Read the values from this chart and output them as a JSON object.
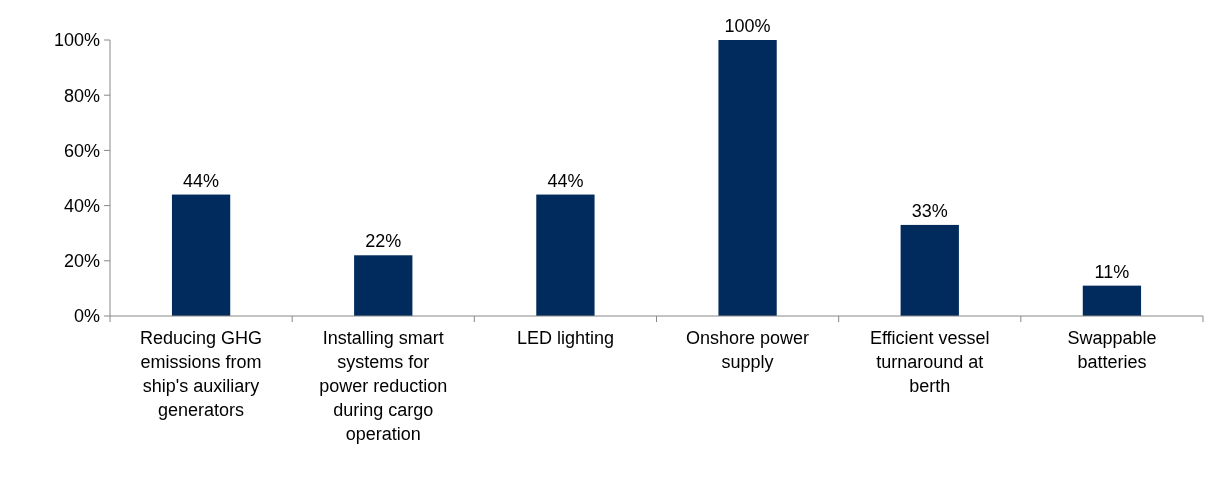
{
  "chart_data": {
    "type": "bar",
    "categories": [
      "Reducing GHG emissions from ship's auxiliary generators",
      "Installing smart systems for power reduction during cargo operation",
      "LED lighting",
      "Onshore power supply",
      "Efficient vessel turnaround at berth",
      "Swappable batteries"
    ],
    "values": [
      44,
      22,
      44,
      100,
      33,
      11
    ],
    "value_labels": [
      "44%",
      "22%",
      "44%",
      "100%",
      "33%",
      "11%"
    ],
    "color": "#002b5c",
    "ylim": [
      0,
      100
    ],
    "yticks": [
      {
        "value": 0,
        "label": "0%"
      },
      {
        "value": 20,
        "label": "20%"
      },
      {
        "value": 40,
        "label": "40%"
      },
      {
        "value": 60,
        "label": "60%"
      },
      {
        "value": 80,
        "label": "80%"
      },
      {
        "value": 100,
        "label": "100%"
      }
    ],
    "grid": false
  }
}
